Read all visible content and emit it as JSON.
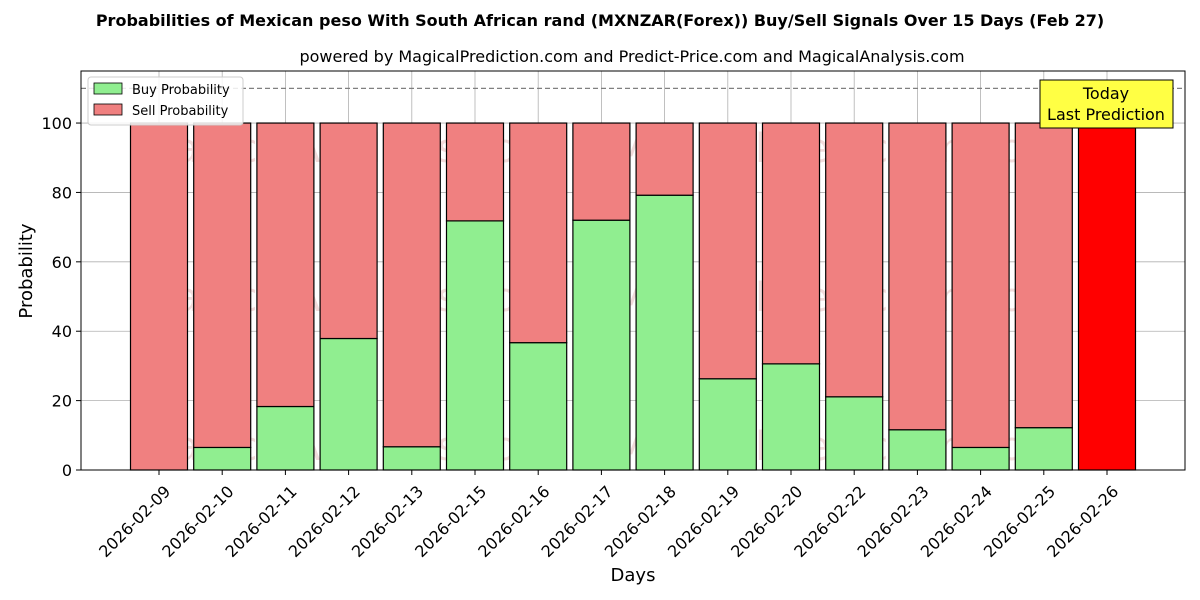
{
  "chart_data": {
    "type": "bar",
    "stacked": true,
    "title": "Probabilities of Mexican peso With South African rand (MXNZAR(Forex)) Buy/Sell Signals Over 15 Days (Feb 27)",
    "subtitle": "powered by MagicalPrediction.com and Predict-Price.com and MagicalAnalysis.com",
    "xlabel": "Days",
    "ylabel": "Probability",
    "ylim": [
      0,
      115
    ],
    "yticks": [
      0,
      20,
      40,
      60,
      80,
      100
    ],
    "reference_line": 110,
    "grid": true,
    "legend_position": "top-left",
    "categories": [
      "2026-02-09",
      "2026-02-10",
      "2026-02-11",
      "2026-02-12",
      "2026-02-13",
      "2026-02-15",
      "2026-02-16",
      "2026-02-17",
      "2026-02-18",
      "2026-02-19",
      "2026-02-20",
      "2026-02-22",
      "2026-02-23",
      "2026-02-24",
      "2026-02-25",
      "2026-02-26"
    ],
    "series": [
      {
        "name": "Buy Probability",
        "color": "#90ee90",
        "values": [
          0,
          6.5,
          18.3,
          37.9,
          6.7,
          71.8,
          36.7,
          72.0,
          79.2,
          26.3,
          30.6,
          21.1,
          11.6,
          6.5,
          12.2,
          0
        ]
      },
      {
        "name": "Sell Probability",
        "color": "#f08080",
        "values": [
          100,
          93.5,
          81.7,
          62.1,
          93.3,
          28.2,
          63.3,
          28.0,
          20.8,
          73.7,
          69.4,
          78.9,
          88.4,
          93.5,
          87.8,
          100
        ]
      }
    ],
    "highlight": {
      "index": 15,
      "color": "#ff0000"
    },
    "annotation": {
      "lines": [
        "Today",
        "Last Prediction"
      ],
      "position": "top-right",
      "background": "#ffff44"
    },
    "watermarks": [
      "MagicalAnalysis.com",
      "MagicalPrediction.com"
    ]
  }
}
